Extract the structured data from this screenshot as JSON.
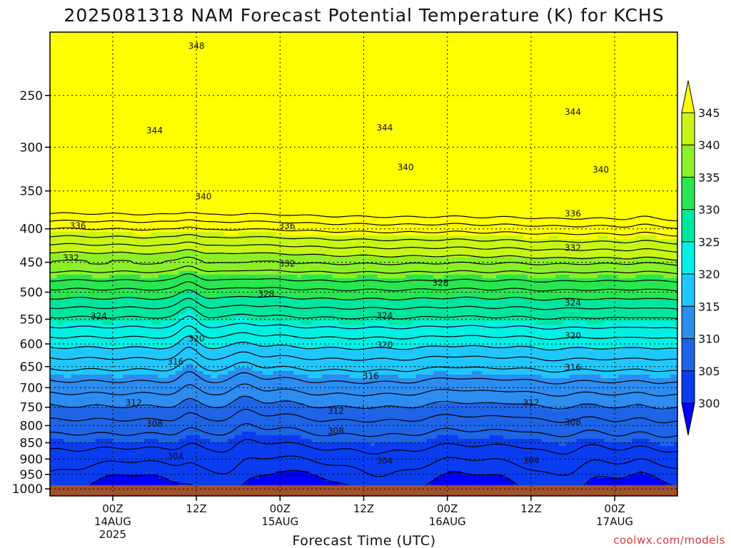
{
  "chart_data": {
    "type": "heatmap",
    "title": "2025081318 NAM Forecast Potential Temperature (K) for KCHS",
    "xlabel": "Forecast Time (UTC)",
    "ylabel": "",
    "credit": "coolwx.com/models",
    "y_axis": {
      "scale": "log",
      "range": [
        1025,
        200
      ],
      "ticks": [
        "250",
        "300",
        "350",
        "400",
        "450",
        "500",
        "550",
        "600",
        "650",
        "700",
        "750",
        "800",
        "850",
        "900",
        "950",
        "1000"
      ]
    },
    "x_axis": {
      "range": [
        "2025-08-13T15:00Z",
        "2025-08-17T09:00Z"
      ],
      "ticks": [
        {
          "label": "00Z",
          "sub": "14AUG",
          "sub2": "2025",
          "time": "2025-08-14T00:00Z"
        },
        {
          "label": "12Z",
          "sub": "",
          "sub2": "",
          "time": "2025-08-14T12:00Z"
        },
        {
          "label": "00Z",
          "sub": "15AUG",
          "sub2": "",
          "time": "2025-08-15T00:00Z"
        },
        {
          "label": "12Z",
          "sub": "",
          "sub2": "",
          "time": "2025-08-15T12:00Z"
        },
        {
          "label": "00Z",
          "sub": "16AUG",
          "sub2": "",
          "time": "2025-08-16T00:00Z"
        },
        {
          "label": "12Z",
          "sub": "",
          "sub2": "",
          "time": "2025-08-16T12:00Z"
        },
        {
          "label": "00Z",
          "sub": "17AUG",
          "sub2": "",
          "time": "2025-08-17T00:00Z"
        }
      ]
    },
    "grid": true,
    "colorbar": {
      "levels": [
        300,
        305,
        310,
        315,
        320,
        325,
        330,
        335,
        340,
        345
      ],
      "labels": [
        "300",
        "305",
        "310",
        "315",
        "320",
        "325",
        "330",
        "335",
        "340",
        "345"
      ],
      "colors": [
        "#0000ff",
        "#0a3cf0",
        "#1e64e6",
        "#2d8cf0",
        "#1ec8ff",
        "#00f0e6",
        "#00e6a0",
        "#28e650",
        "#8cf028",
        "#c8f514",
        "#ffff00"
      ],
      "placement": "right"
    },
    "contour_interval": 2,
    "contour_labels": [
      {
        "value": "348",
        "pressure": 210,
        "time": "2025-08-14T12:00Z"
      },
      {
        "value": "344",
        "pressure": 283,
        "time": "2025-08-14T06:00Z"
      },
      {
        "value": "344",
        "pressure": 280,
        "time": "2025-08-15T15:00Z"
      },
      {
        "value": "344",
        "pressure": 265,
        "time": "2025-08-16T18:00Z"
      },
      {
        "value": "340",
        "pressure": 322,
        "time": "2025-08-15T18:00Z"
      },
      {
        "value": "340",
        "pressure": 325,
        "time": "2025-08-16T22:00Z"
      },
      {
        "value": "340",
        "pressure": 357,
        "time": "2025-08-14T13:00Z"
      },
      {
        "value": "336",
        "pressure": 396,
        "time": "2025-08-13T19:00Z"
      },
      {
        "value": "336",
        "pressure": 396,
        "time": "2025-08-15T01:00Z"
      },
      {
        "value": "336",
        "pressure": 379,
        "time": "2025-08-16T18:00Z"
      },
      {
        "value": "332",
        "pressure": 443,
        "time": "2025-08-13T18:00Z"
      },
      {
        "value": "332",
        "pressure": 452,
        "time": "2025-08-15T01:00Z"
      },
      {
        "value": "332",
        "pressure": 428,
        "time": "2025-08-16T18:00Z"
      },
      {
        "value": "328",
        "pressure": 503,
        "time": "2025-08-14T22:00Z"
      },
      {
        "value": "328",
        "pressure": 484,
        "time": "2025-08-15T23:00Z"
      },
      {
        "value": "324",
        "pressure": 544,
        "time": "2025-08-13T22:00Z"
      },
      {
        "value": "324",
        "pressure": 543,
        "time": "2025-08-15T15:00Z"
      },
      {
        "value": "324",
        "pressure": 519,
        "time": "2025-08-16T18:00Z"
      },
      {
        "value": "320",
        "pressure": 589,
        "time": "2025-08-14T12:00Z"
      },
      {
        "value": "320",
        "pressure": 602,
        "time": "2025-08-15T15:00Z"
      },
      {
        "value": "320",
        "pressure": 583,
        "time": "2025-08-16T18:00Z"
      },
      {
        "value": "316",
        "pressure": 639,
        "time": "2025-08-14T09:00Z"
      },
      {
        "value": "316",
        "pressure": 672,
        "time": "2025-08-15T13:00Z"
      },
      {
        "value": "316",
        "pressure": 652,
        "time": "2025-08-16T18:00Z"
      },
      {
        "value": "312",
        "pressure": 738,
        "time": "2025-08-14T03:00Z"
      },
      {
        "value": "312",
        "pressure": 760,
        "time": "2025-08-15T08:00Z"
      },
      {
        "value": "312",
        "pressure": 738,
        "time": "2025-08-16T12:00Z"
      },
      {
        "value": "308",
        "pressure": 795,
        "time": "2025-08-14T06:00Z"
      },
      {
        "value": "308",
        "pressure": 815,
        "time": "2025-08-15T08:00Z"
      },
      {
        "value": "308",
        "pressure": 790,
        "time": "2025-08-16T18:00Z"
      },
      {
        "value": "304",
        "pressure": 891,
        "time": "2025-08-14T09:00Z"
      },
      {
        "value": "304",
        "pressure": 906,
        "time": "2025-08-15T15:00Z"
      },
      {
        "value": "304",
        "pressure": 905,
        "time": "2025-08-16T12:00Z"
      }
    ]
  }
}
